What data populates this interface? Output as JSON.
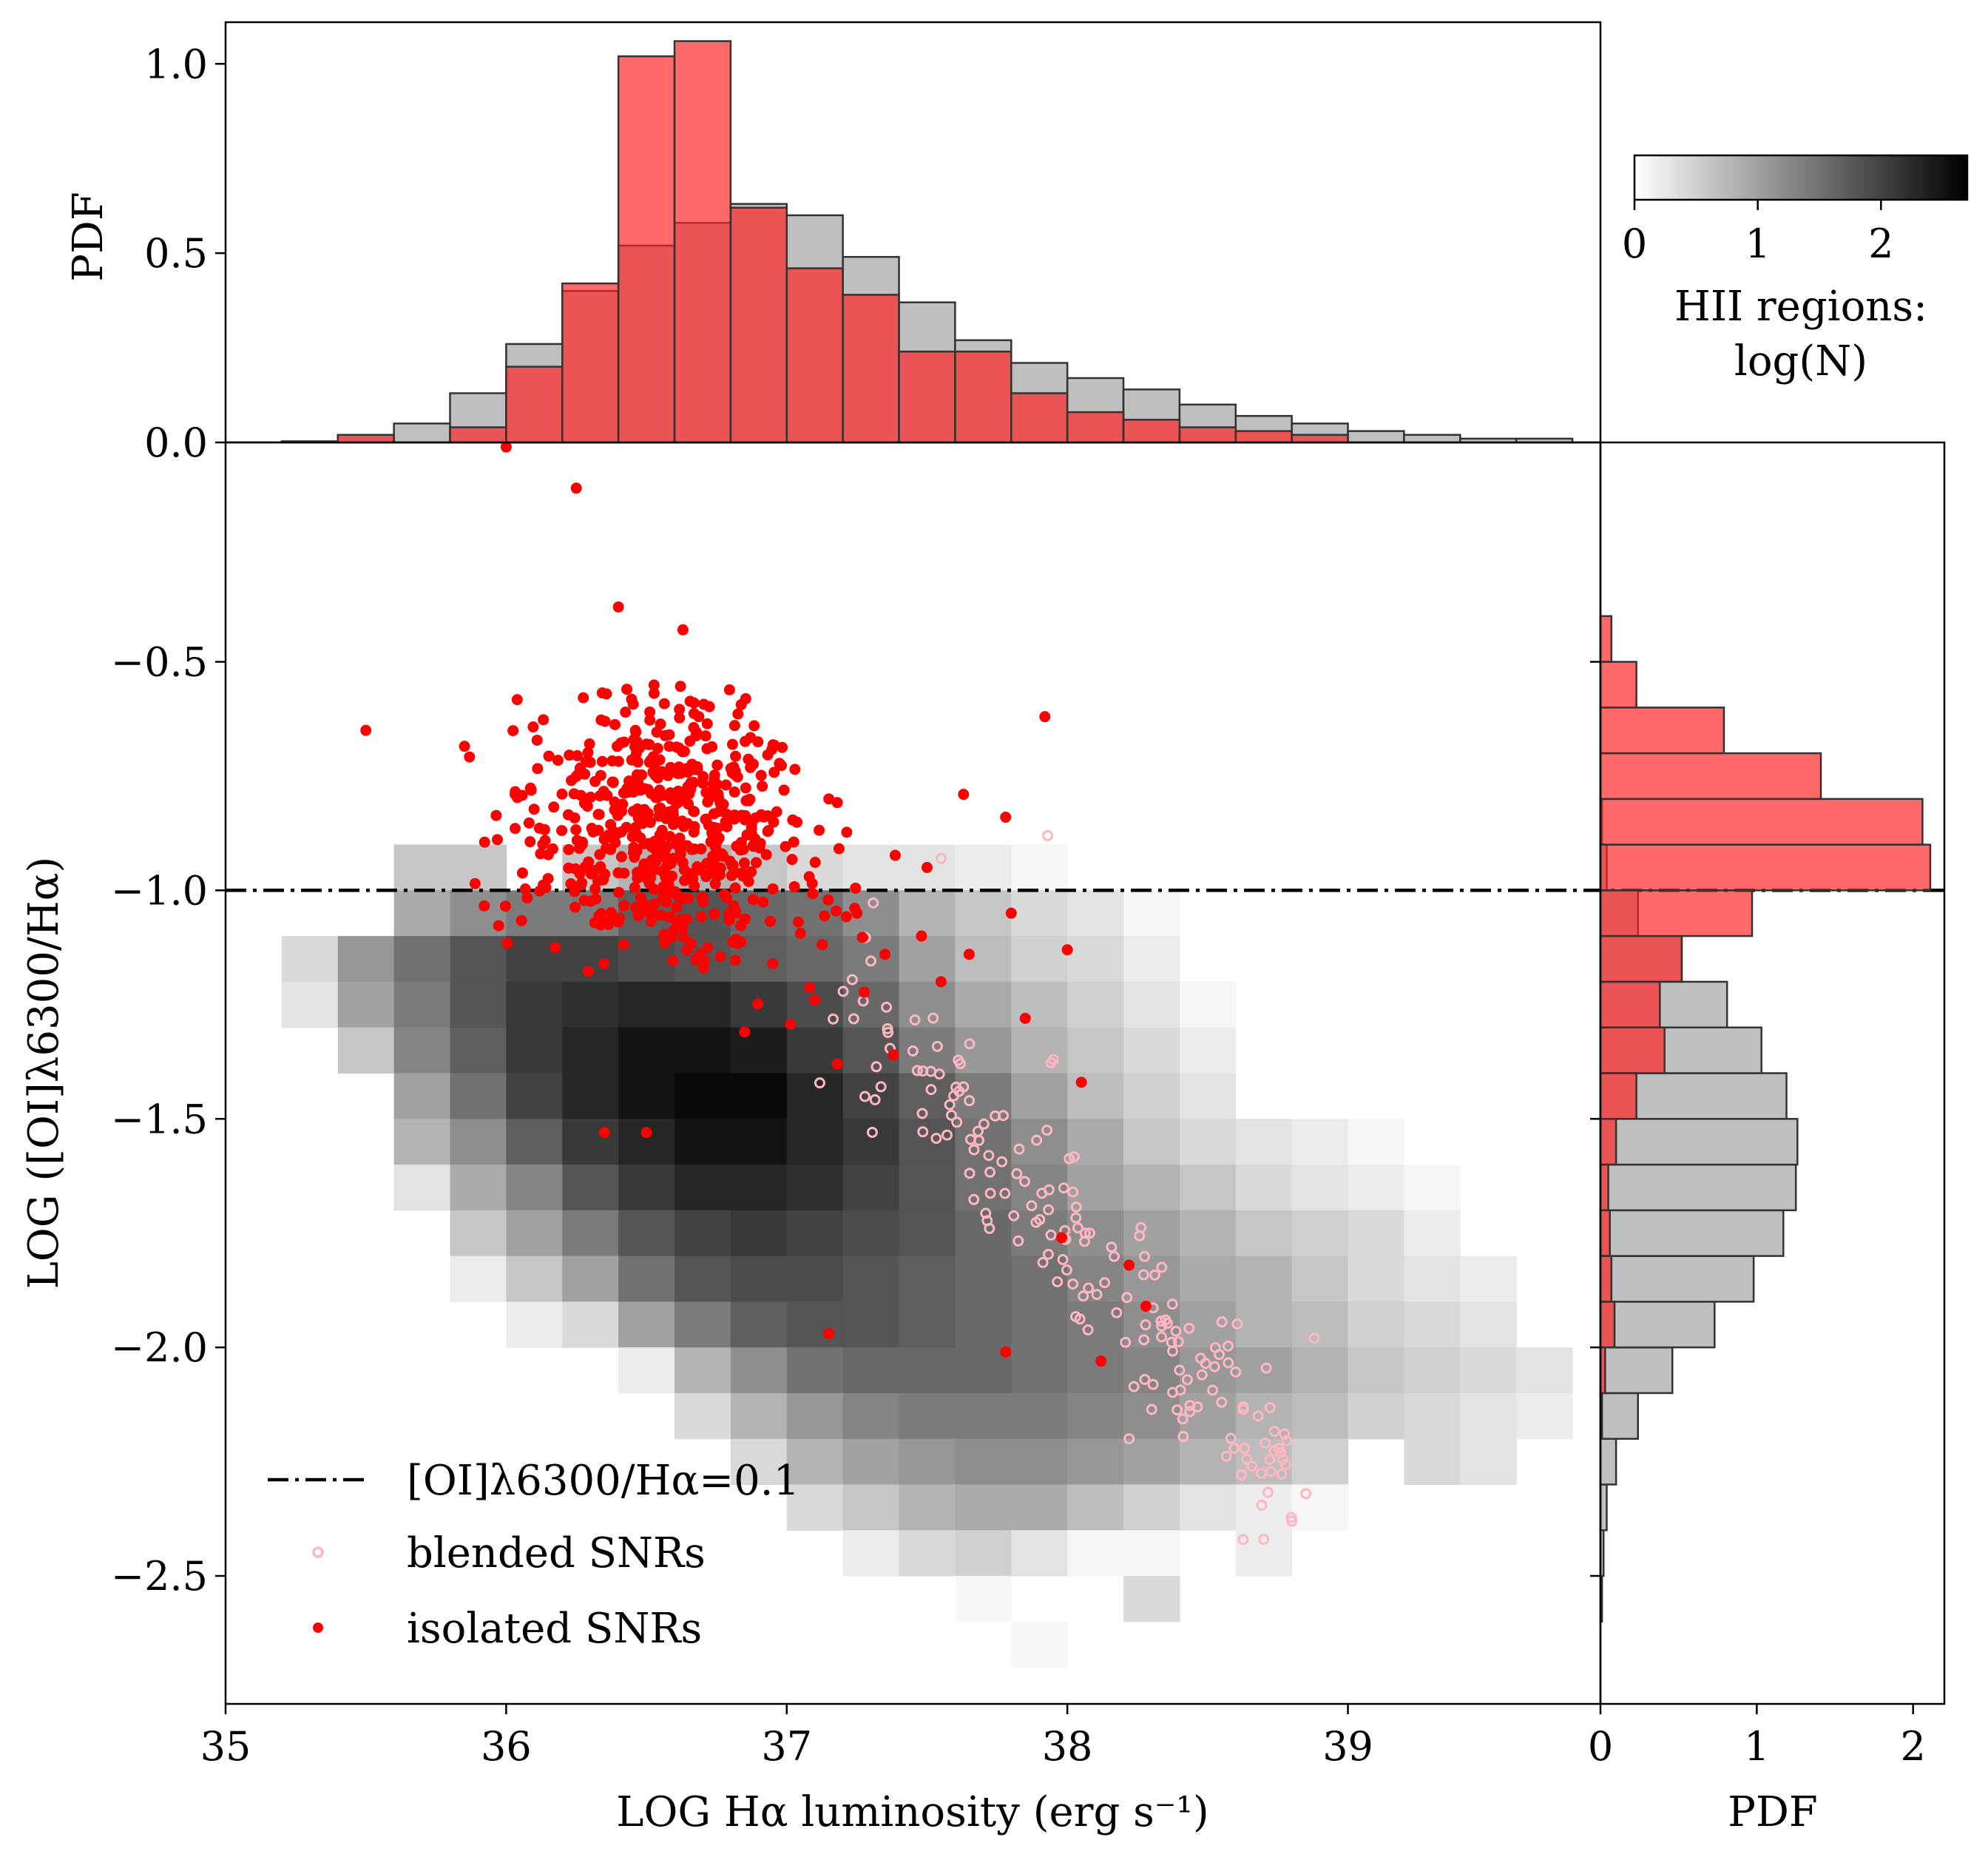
{
  "chart_data": {
    "type": "scatter",
    "xlabel": "LOG Hα luminosity (erg s⁻¹)",
    "ylabel": "LOG ([OI]λ6300/Hα)",
    "xlim": [
      35,
      39.9
    ],
    "ylim": [
      -2.78,
      -0.02
    ],
    "x_ticks": [
      "35",
      "36",
      "37",
      "38",
      "39"
    ],
    "y_ticks": [
      "−0.5",
      "−1.0",
      "−1.5",
      "−2.0",
      "−2.5"
    ],
    "threshold": {
      "value": -1.0,
      "label": "[OI]λ6300/Hα=0.1",
      "style": "dash-dot"
    },
    "legend_position": "lower-left",
    "colors": {
      "isolated": "#ff0000",
      "blended": "#ffb6c1",
      "hist_red": "#ff6666",
      "hist_gray": "#bfbfbf",
      "hist_overlap": "#e34b4b"
    },
    "heatmap": {
      "name": "HII regions",
      "x0": 35.2,
      "dx": 0.2,
      "y_top": -0.9,
      "dy": 0.1,
      "rows": [
        [
          null,
          null,
          0.6,
          0.6,
          null,
          0.6,
          0.8,
          0.8,
          0.6,
          0.4,
          0.3,
          0.3,
          0.2,
          0.1,
          null,
          null,
          null,
          null,
          null,
          null,
          null,
          null,
          null
        ],
        [
          null,
          null,
          0.9,
          1.2,
          1.4,
          1.4,
          1.7,
          1.8,
          1.6,
          1.5,
          1.2,
          0.8,
          0.6,
          0.4,
          0.3,
          0.1,
          null,
          null,
          null,
          null,
          null,
          null,
          null
        ],
        [
          0.4,
          1.1,
          1.5,
          1.8,
          2.0,
          2.0,
          1.9,
          1.8,
          1.7,
          1.6,
          1.4,
          1.0,
          0.7,
          0.5,
          0.4,
          0.2,
          null,
          null,
          null,
          null,
          null,
          null,
          null
        ],
        [
          0.3,
          1.0,
          1.4,
          1.8,
          2.1,
          2.2,
          2.3,
          2.3,
          2.1,
          1.9,
          1.6,
          1.2,
          0.9,
          0.7,
          0.5,
          0.3,
          0.1,
          null,
          null,
          null,
          null,
          null,
          null
        ],
        [
          null,
          0.6,
          1.3,
          1.7,
          2.1,
          2.3,
          2.5,
          2.5,
          2.4,
          2.1,
          1.8,
          1.4,
          1.1,
          0.8,
          0.6,
          0.4,
          0.2,
          null,
          null,
          null,
          null,
          null,
          null
        ],
        [
          null,
          null,
          1.0,
          1.5,
          2.0,
          2.3,
          2.5,
          2.6,
          2.6,
          2.3,
          2.0,
          1.7,
          1.4,
          1.0,
          0.7,
          0.5,
          0.3,
          null,
          null,
          null,
          null,
          null,
          null
        ],
        [
          null,
          null,
          0.8,
          1.2,
          1.7,
          2.1,
          2.3,
          2.5,
          2.5,
          2.3,
          2.1,
          1.8,
          1.5,
          1.2,
          0.9,
          0.6,
          0.4,
          0.3,
          0.2,
          0.1,
          null,
          null,
          null
        ],
        [
          null,
          null,
          0.3,
          0.9,
          1.3,
          1.8,
          2.1,
          2.3,
          2.3,
          2.2,
          2.0,
          1.8,
          1.5,
          1.3,
          1.0,
          0.8,
          0.6,
          0.4,
          0.3,
          0.2,
          0.1,
          null,
          null
        ],
        [
          null,
          null,
          null,
          0.6,
          1.0,
          1.4,
          1.8,
          2.0,
          2.1,
          2.0,
          1.9,
          1.8,
          1.6,
          1.4,
          1.2,
          1.0,
          0.8,
          0.6,
          0.5,
          0.4,
          0.2,
          null,
          null
        ],
        [
          null,
          null,
          null,
          0.2,
          0.6,
          1.0,
          1.5,
          1.8,
          1.9,
          1.9,
          1.8,
          1.7,
          1.6,
          1.5,
          1.3,
          1.1,
          0.9,
          0.8,
          0.6,
          0.4,
          0.3,
          0.2,
          null
        ],
        [
          null,
          null,
          null,
          null,
          0.2,
          0.4,
          1.0,
          1.4,
          1.7,
          1.8,
          1.8,
          1.7,
          1.6,
          1.5,
          1.4,
          1.2,
          1.0,
          0.8,
          0.7,
          0.5,
          0.4,
          0.3,
          null
        ],
        [
          null,
          null,
          null,
          null,
          null,
          null,
          0.2,
          0.8,
          1.2,
          1.5,
          1.6,
          1.6,
          1.6,
          1.5,
          1.4,
          1.3,
          1.1,
          1.0,
          0.8,
          0.6,
          0.5,
          0.4,
          0.3
        ],
        [
          null,
          null,
          null,
          null,
          null,
          null,
          null,
          0.4,
          0.8,
          1.1,
          1.3,
          1.4,
          1.4,
          1.4,
          1.3,
          1.2,
          1.0,
          0.8,
          0.7,
          0.5,
          0.4,
          0.3,
          0.2
        ],
        [
          null,
          null,
          null,
          null,
          null,
          null,
          null,
          null,
          0.4,
          0.8,
          1.0,
          1.1,
          1.2,
          1.2,
          1.1,
          1.0,
          0.8,
          0.7,
          0.5,
          null,
          0.4,
          0.3,
          null
        ],
        [
          null,
          null,
          null,
          null,
          null,
          null,
          null,
          null,
          null,
          0.4,
          0.6,
          0.8,
          0.9,
          0.9,
          0.7,
          0.5,
          0.3,
          0.2,
          0.1,
          null,
          null,
          null,
          null
        ],
        [
          null,
          null,
          null,
          null,
          null,
          null,
          null,
          null,
          null,
          null,
          0.2,
          0.4,
          0.5,
          0.3,
          0.1,
          0.1,
          null,
          0.2,
          null,
          null,
          null,
          null,
          null
        ],
        [
          null,
          null,
          null,
          null,
          null,
          null,
          null,
          null,
          null,
          null,
          null,
          null,
          0.1,
          null,
          null,
          0.4,
          null,
          null,
          null,
          null,
          null,
          null,
          null
        ],
        [
          null,
          null,
          null,
          null,
          null,
          null,
          null,
          null,
          null,
          null,
          null,
          null,
          null,
          0.1,
          null,
          null,
          null,
          null,
          null,
          null,
          null,
          null,
          null
        ]
      ]
    },
    "colorbar": {
      "label_line1": "HII regions:",
      "label_line2": "log(N)",
      "range": [
        0,
        2.7
      ],
      "ticks": [
        "0",
        "1",
        "2"
      ]
    },
    "top_histogram": {
      "ylabel": "PDF",
      "ylim": [
        0,
        1.11
      ],
      "y_ticks": [
        "0.0",
        "0.5",
        "1.0"
      ],
      "bin_edges": [
        35.2,
        35.4,
        35.6,
        35.8,
        36.0,
        36.2,
        36.4,
        36.6,
        36.8,
        37.0,
        37.2,
        37.4,
        37.6,
        37.8,
        38.0,
        38.2,
        38.4,
        38.6,
        38.8,
        39.0,
        39.2,
        39.4,
        39.6,
        39.8
      ],
      "hii": [
        0.003,
        0.02,
        0.05,
        0.13,
        0.26,
        0.4,
        0.52,
        0.58,
        0.63,
        0.6,
        0.49,
        0.37,
        0.27,
        0.21,
        0.17,
        0.14,
        0.1,
        0.07,
        0.05,
        0.03,
        0.02,
        0.01,
        0.01
      ],
      "snr": [
        0.0,
        0.02,
        0.0,
        0.04,
        0.2,
        0.42,
        1.02,
        1.06,
        0.62,
        0.46,
        0.39,
        0.24,
        0.24,
        0.13,
        0.08,
        0.06,
        0.04,
        0.03,
        0.02,
        0.0,
        0.0,
        0.0,
        0.0
      ]
    },
    "right_histogram": {
      "xlabel": "PDF",
      "xlim": [
        0,
        2.2
      ],
      "x_ticks": [
        "0",
        "1",
        "2"
      ],
      "bin_edges": [
        -2.6,
        -2.5,
        -2.4,
        -2.3,
        -2.2,
        -2.1,
        -2.0,
        -1.9,
        -1.8,
        -1.7,
        -1.6,
        -1.5,
        -1.4,
        -1.3,
        -1.2,
        -1.1,
        -1.0,
        -0.9,
        -0.8,
        -0.7,
        -0.6,
        -0.5,
        -0.4
      ],
      "hii": [
        0.01,
        0.02,
        0.04,
        0.1,
        0.24,
        0.46,
        0.73,
        0.98,
        1.17,
        1.25,
        1.26,
        1.19,
        1.03,
        0.81,
        0.52,
        0.24,
        0.04,
        0.01,
        0.0,
        0.0,
        0.0,
        0.0
      ],
      "snr": [
        0.0,
        0.0,
        0.0,
        0.0,
        0.01,
        0.03,
        0.09,
        0.07,
        0.06,
        0.05,
        0.1,
        0.23,
        0.41,
        0.38,
        0.52,
        0.97,
        2.11,
        2.06,
        1.41,
        0.79,
        0.23,
        0.07
      ]
    },
    "series": [
      {
        "name": "isolated SNRs",
        "marker": "filled-circle",
        "color": "#ff0000",
        "x": [
          35.5,
          36.0,
          36.25,
          36.4,
          36.63,
          36.43,
          37.92,
          36.85,
          36.5,
          36.35,
          36.62,
          37.15,
          37.35,
          37.18,
          37.38,
          37.8,
          37.65,
          37.15,
          37.78,
          37.98,
          38.22,
          38.28,
          38.12,
          37.63,
          37.78,
          38.0,
          37.48,
          37.5,
          36.3,
          36.5,
          36.45,
          36.55,
          36.88,
          37.08,
          37.25,
          37.55,
          37.85,
          38.05,
          37.1,
          36.95
        ],
        "y": [
          -0.65,
          -0.03,
          -0.12,
          -0.38,
          -0.43,
          -0.56,
          -0.62,
          -1.31,
          -1.53,
          -1.53,
          -0.91,
          -0.8,
          -1.14,
          -1.38,
          -1.36,
          -1.05,
          -1.14,
          -1.97,
          -2.01,
          -1.76,
          -1.82,
          -1.91,
          -2.03,
          -0.79,
          -0.84,
          -1.13,
          -1.1,
          -0.95,
          -0.72,
          -0.68,
          -0.78,
          -0.82,
          -1.02,
          -0.97,
          -1.05,
          -1.2,
          -1.28,
          -1.42,
          -1.24,
          -1.16
        ],
        "cluster": {
          "center": [
            36.55,
            -0.86
          ],
          "spread": [
            0.26,
            0.14
          ],
          "count": 560
        }
      },
      {
        "name": "blended SNRs",
        "marker": "open-circle",
        "color": "#ffb6c1",
        "x": [
          37.93,
          37.55,
          37.95,
          38.4,
          38.22,
          38.62,
          38.88,
          38.76,
          38.8,
          38.7,
          37.72,
          38.02,
          38.08,
          37.63,
          37.82,
          38.55,
          38.48,
          38.68,
          38.85,
          38.35
        ],
        "y": [
          -0.88,
          -0.93,
          -1.37,
          -2.05,
          -2.2,
          -2.28,
          -1.98,
          -2.23,
          -2.38,
          -2.42,
          -1.58,
          -1.66,
          -1.75,
          -1.43,
          -1.62,
          -2.12,
          -2.06,
          -2.15,
          -2.32,
          -1.94
        ],
        "cluster": {
          "start": [
            37.2,
            -1.2
          ],
          "end": [
            38.8,
            -2.3
          ],
          "scatter": 0.09,
          "count": 170
        }
      }
    ]
  }
}
